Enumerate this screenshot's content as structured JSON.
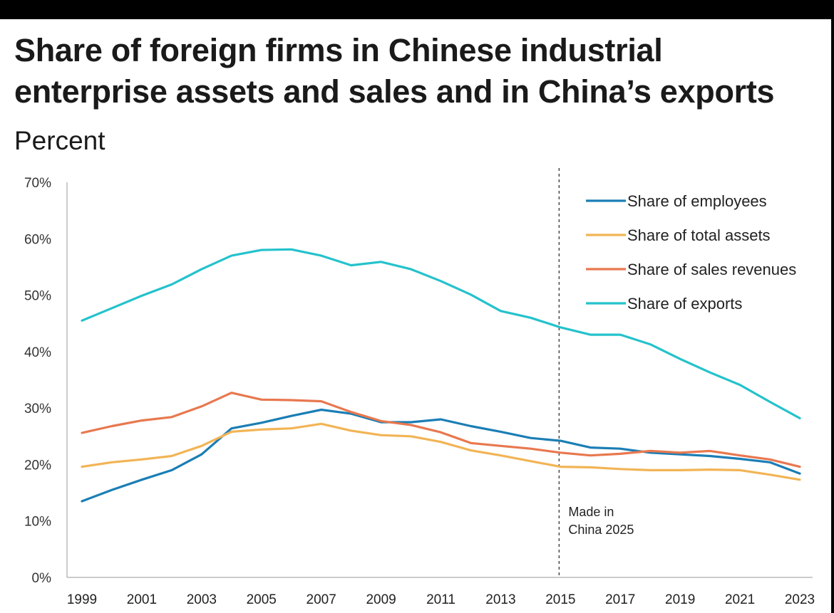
{
  "header": {
    "title": "Share of foreign firms in Chinese industrial enterprise assets and sales and in China’s exports",
    "subtitle": "Percent"
  },
  "chart_data": {
    "type": "line",
    "title": "Share of foreign firms in Chinese industrial enterprise assets and sales and in China’s exports",
    "subtitle": "Percent",
    "xlabel": "",
    "ylabel": "",
    "ylim": [
      0,
      70
    ],
    "xlim": [
      1999,
      2023
    ],
    "yticks": [
      0,
      10,
      20,
      30,
      40,
      50,
      60,
      70
    ],
    "ytick_labels": [
      "0%",
      "10%",
      "20%",
      "30%",
      "40%",
      "50%",
      "60%",
      "70%"
    ],
    "xticks": [
      1999,
      2001,
      2003,
      2005,
      2007,
      2009,
      2011,
      2013,
      2015,
      2017,
      2019,
      2021,
      2023
    ],
    "xtick_labels": [
      "1999",
      "2001",
      "2003",
      "2005",
      "2007",
      "2009",
      "2011",
      "2013",
      "2015",
      "2017",
      "2019",
      "2021",
      "2023"
    ],
    "grid": false,
    "legend_position": "top-right",
    "x": [
      1999,
      2000,
      2001,
      2002,
      2003,
      2004,
      2005,
      2006,
      2007,
      2008,
      2009,
      2010,
      2011,
      2012,
      2013,
      2014,
      2015,
      2016,
      2017,
      2018,
      2019,
      2020,
      2021,
      2022,
      2023
    ],
    "series": [
      {
        "name": "Share of employees",
        "color": "#1b7eb5",
        "values": [
          13.5,
          15.5,
          17.3,
          19.0,
          21.8,
          26.4,
          27.4,
          28.6,
          29.7,
          29.0,
          27.5,
          27.5,
          28.0,
          26.8,
          25.8,
          24.7,
          24.2,
          23.0,
          22.8,
          22.1,
          21.8,
          21.5,
          21.0,
          20.4,
          18.4
        ]
      },
      {
        "name": "Share of total assets",
        "color": "#f2b455",
        "values": [
          19.6,
          20.4,
          20.9,
          21.5,
          23.3,
          25.8,
          26.2,
          26.4,
          27.2,
          26.0,
          25.2,
          25.0,
          24.0,
          22.5,
          21.6,
          20.6,
          19.6,
          19.5,
          19.2,
          19.0,
          19.0,
          19.1,
          19.0,
          18.2,
          17.3
        ]
      },
      {
        "name": "Share of sales revenues",
        "color": "#e8784f",
        "values": [
          25.6,
          26.8,
          27.8,
          28.4,
          30.3,
          32.7,
          31.5,
          31.4,
          31.2,
          29.3,
          27.7,
          27.0,
          25.7,
          23.8,
          23.3,
          22.8,
          22.1,
          21.6,
          21.9,
          22.4,
          22.1,
          22.4,
          21.6,
          20.9,
          19.6
        ]
      },
      {
        "name": "Share of exports",
        "color": "#24c2cc",
        "values": [
          45.5,
          47.7,
          49.9,
          51.9,
          54.6,
          57.0,
          58.0,
          58.1,
          57.0,
          55.3,
          55.9,
          54.6,
          52.5,
          50.1,
          47.2,
          46.0,
          44.3,
          43.0,
          43.0,
          41.3,
          38.7,
          36.3,
          34.1,
          31.1,
          28.2
        ]
      }
    ],
    "annotations": [
      {
        "x": 2015,
        "label_line1": "Made in",
        "label_line2": "China 2025",
        "style": "dashed vertical line"
      }
    ]
  }
}
